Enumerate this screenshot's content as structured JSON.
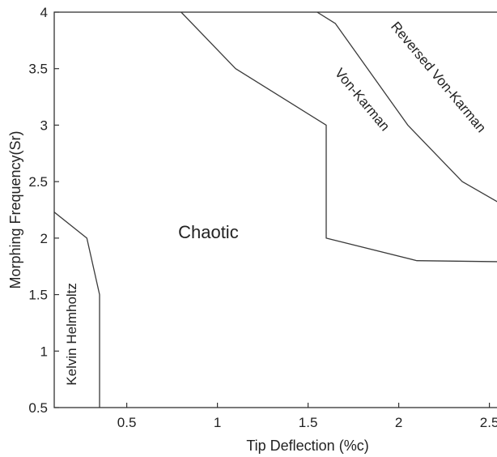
{
  "chart_data": {
    "type": "line",
    "title": "",
    "xlabel": "Tip Deflection (%c)",
    "ylabel": "Morphing Frequency(Sr)",
    "xlim": [
      0.1,
      2.6
    ],
    "ylim": [
      0.5,
      4.0
    ],
    "xticks": [
      0.5,
      1,
      1.5,
      2,
      2.5
    ],
    "xtick_labels": [
      "0.5",
      "1",
      "1.5",
      "2",
      "2.5"
    ],
    "yticks": [
      0.5,
      1,
      1.5,
      2,
      2.5,
      3,
      3.5,
      4
    ],
    "ytick_labels": [
      "0.5",
      "1",
      "1.5",
      "2",
      "2.5",
      "3",
      "3.5",
      "4"
    ],
    "grid": false,
    "series": [
      {
        "x": [
          0.1,
          0.28,
          0.35,
          0.35
        ],
        "y": [
          2.23,
          2.0,
          1.5,
          0.5
        ]
      },
      {
        "x": [
          0.8,
          1.1,
          1.6,
          1.6,
          2.1,
          2.6
        ],
        "y": [
          4.0,
          3.5,
          3.0,
          2.0,
          1.8,
          1.79
        ]
      },
      {
        "x": [
          1.55,
          1.65,
          2.05,
          2.35,
          2.6
        ],
        "y": [
          4.0,
          3.9,
          3.0,
          2.5,
          2.27
        ]
      }
    ],
    "annotations": [
      {
        "text": "Kelvin Helmholtz",
        "x": 0.22,
        "y": 1.15,
        "rotation": -90,
        "size": 17
      },
      {
        "text": "Chaotic",
        "x": 0.95,
        "y": 2.0,
        "rotation": 0,
        "size": 22
      },
      {
        "text": "Von-Karman",
        "x": 1.78,
        "y": 3.2,
        "rotation": 50,
        "size": 17
      },
      {
        "text": "Reversed Von-Karman",
        "x": 2.2,
        "y": 3.4,
        "rotation": 50,
        "size": 17
      }
    ]
  }
}
